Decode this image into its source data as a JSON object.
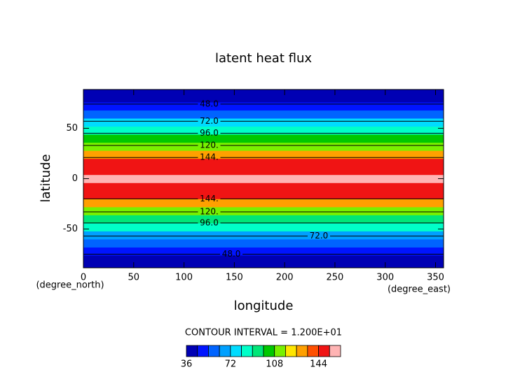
{
  "chart_data": {
    "type": "contour",
    "title": "latent heat flux",
    "x_label": "longitude",
    "y_label": "latitude",
    "x_unit": "(degree_east)",
    "y_unit": "(degree_north)",
    "xlim": [
      0,
      358
    ],
    "ylim": [
      -88.5,
      88.5
    ],
    "xticks": [
      0,
      50,
      100,
      150,
      200,
      250,
      300,
      350
    ],
    "yticks": [
      -50,
      0,
      50
    ],
    "lat": [
      -88,
      -80,
      -72,
      -64,
      -56,
      -48,
      -40,
      -32,
      -24,
      -16,
      -8,
      0,
      8,
      16,
      24,
      32,
      40,
      48,
      56,
      64,
      72,
      80,
      88
    ],
    "values": [
      36,
      42,
      50,
      60,
      70,
      84,
      96,
      110,
      128,
      146,
      152,
      156,
      152,
      146,
      130,
      116,
      100,
      86,
      74,
      62,
      52,
      44,
      40
    ],
    "contours": [
      {
        "value": 48,
        "label": "48.0",
        "lat": 74,
        "lon": 125
      },
      {
        "value": 72,
        "label": "72.0",
        "lat": 57,
        "lon": 125
      },
      {
        "value": 96,
        "label": "96.0",
        "lat": 45,
        "lon": 125
      },
      {
        "value": 120,
        "label": "120.",
        "lat": 33,
        "lon": 125
      },
      {
        "value": 144,
        "label": "144.",
        "lat": 21,
        "lon": 125
      },
      {
        "value": 144,
        "label": "144.",
        "lat": -20,
        "lon": 125
      },
      {
        "value": 120,
        "label": "120.",
        "lat": -33,
        "lon": 125
      },
      {
        "value": 96,
        "label": "96.0",
        "lat": -44,
        "lon": 125
      },
      {
        "value": 72,
        "label": "72.0",
        "lat": -57,
        "lon": 234
      },
      {
        "value": 48,
        "label": "48.0",
        "lat": -75,
        "lon": 147
      }
    ],
    "contour_interval_text": "CONTOUR INTERVAL = 1.200E+01",
    "colorbar": {
      "levels": [
        36,
        45,
        54,
        63,
        72,
        81,
        90,
        99,
        108,
        117,
        126,
        135,
        144,
        153,
        162
      ],
      "colors": [
        "#0000b4",
        "#0014ff",
        "#0064ff",
        "#00a0ff",
        "#00dcff",
        "#00ffc8",
        "#00e678",
        "#00c800",
        "#78f000",
        "#ffe600",
        "#ffa000",
        "#ff5000",
        "#f01414",
        "#ffb4b4"
      ],
      "ticks": [
        36,
        72,
        108,
        144
      ]
    }
  }
}
